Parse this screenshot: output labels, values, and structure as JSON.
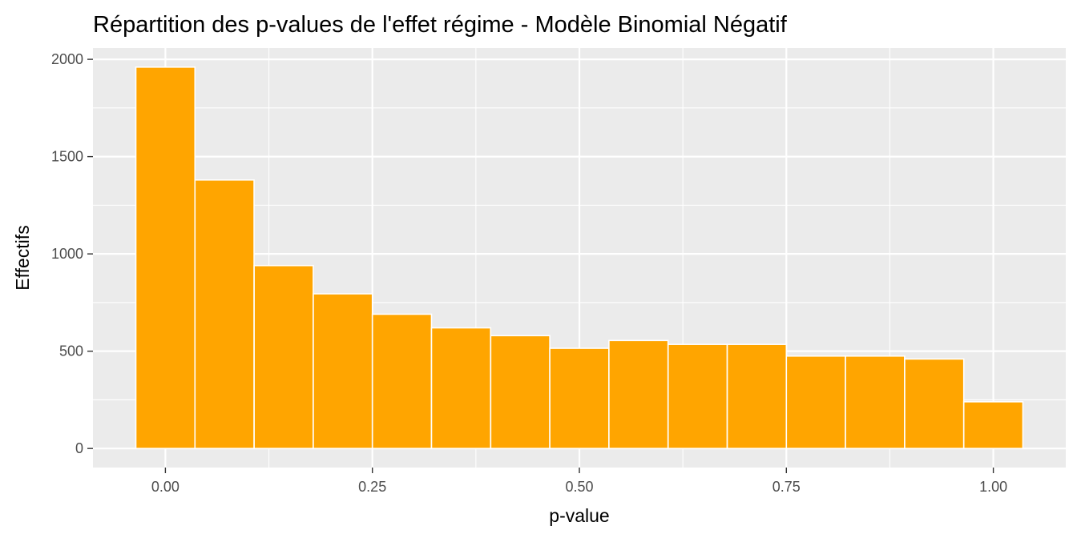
{
  "chart_data": {
    "type": "bar",
    "title": "Répartition des p-values de l'effet régime - Modèle Binomial Négatif",
    "xlabel": "p-value",
    "ylabel": "Effectifs",
    "bin_width": 0.0714,
    "bins": [
      {
        "center": 0.0,
        "count": 1960
      },
      {
        "center": 0.0714,
        "count": 1380
      },
      {
        "center": 0.1429,
        "count": 940
      },
      {
        "center": 0.2143,
        "count": 795
      },
      {
        "center": 0.2857,
        "count": 690
      },
      {
        "center": 0.3571,
        "count": 620
      },
      {
        "center": 0.4286,
        "count": 580
      },
      {
        "center": 0.5,
        "count": 515
      },
      {
        "center": 0.5714,
        "count": 555
      },
      {
        "center": 0.6429,
        "count": 535
      },
      {
        "center": 0.7143,
        "count": 535
      },
      {
        "center": 0.7857,
        "count": 475
      },
      {
        "center": 0.8571,
        "count": 475
      },
      {
        "center": 0.9286,
        "count": 460
      },
      {
        "center": 1.0,
        "count": 240
      }
    ],
    "xlim": [
      -0.0875,
      1.0875
    ],
    "ylim": [
      -98,
      2058
    ],
    "x_ticks": [
      0,
      0.25,
      0.5,
      0.75,
      1
    ],
    "x_tick_labels": [
      "0.00",
      "0.25",
      "0.50",
      "0.75",
      "1.00"
    ],
    "y_ticks": [
      0,
      500,
      1000,
      1500,
      2000
    ],
    "y_tick_labels": [
      "0",
      "500",
      "1000",
      "1500",
      "2000"
    ],
    "grid": true,
    "colors": {
      "bar_fill": "#FFA500",
      "bar_stroke": "#FFFFFF",
      "panel_bg": "#EBEBEB",
      "grid": "#FFFFFF"
    }
  }
}
